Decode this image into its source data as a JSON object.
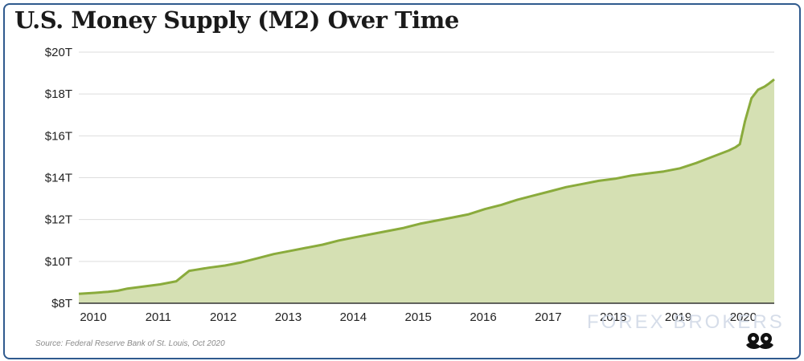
{
  "chart_data": {
    "type": "area",
    "title": "U.S. Money Supply (M2) Over Time",
    "source": "Source: Federal Reserve Bank of St. Louis, Oct 2020",
    "watermark": "FOREX BROKERS",
    "xlabel": "",
    "ylabel": "",
    "y_ticks": [
      "$8T",
      "$10T",
      "$12T",
      "$14T",
      "$16T",
      "$18T",
      "$20T"
    ],
    "y_tick_values": [
      8,
      10,
      12,
      14,
      16,
      18,
      20
    ],
    "x_ticks": [
      "2010",
      "2011",
      "2012",
      "2013",
      "2014",
      "2015",
      "2016",
      "2017",
      "2018",
      "2019",
      "2020"
    ],
    "x_tick_values": [
      2010,
      2011,
      2012,
      2013,
      2014,
      2015,
      2016,
      2017,
      2018,
      2019,
      2020
    ],
    "xlim": [
      2010,
      2020.7
    ],
    "ylim": [
      8,
      20
    ],
    "grid": true,
    "colors": {
      "line": "#8aab3c",
      "fill": "#d5e0b3",
      "grid": "#dddddd",
      "frame": "#2f5a8e"
    },
    "series": [
      {
        "x": [
          2010.0,
          2010.25,
          2010.45,
          2010.6,
          2010.75,
          2011.0,
          2011.25,
          2011.5,
          2011.6,
          2011.7,
          2011.8,
          2012.0,
          2012.25,
          2012.5,
          2012.75,
          2013.0,
          2013.25,
          2013.5,
          2013.75,
          2014.0,
          2014.25,
          2014.5,
          2014.75,
          2015.0,
          2015.25,
          2015.5,
          2015.75,
          2016.0,
          2016.25,
          2016.5,
          2016.75,
          2017.0,
          2017.25,
          2017.5,
          2017.75,
          2018.0,
          2018.25,
          2018.5,
          2018.75,
          2019.0,
          2019.25,
          2019.5,
          2019.75,
          2020.0,
          2020.1,
          2020.17,
          2020.25,
          2020.35,
          2020.45,
          2020.55,
          2020.62,
          2020.7
        ],
        "values": [
          8.45,
          8.5,
          8.55,
          8.6,
          8.7,
          8.8,
          8.9,
          9.05,
          9.3,
          9.55,
          9.6,
          9.7,
          9.8,
          9.95,
          10.15,
          10.35,
          10.5,
          10.65,
          10.8,
          11.0,
          11.15,
          11.3,
          11.45,
          11.6,
          11.8,
          11.95,
          12.1,
          12.25,
          12.5,
          12.7,
          12.95,
          13.15,
          13.35,
          13.55,
          13.7,
          13.85,
          13.95,
          14.1,
          14.2,
          14.3,
          14.45,
          14.7,
          15.0,
          15.3,
          15.45,
          15.6,
          16.7,
          17.8,
          18.2,
          18.35,
          18.5,
          18.7
        ]
      }
    ]
  }
}
